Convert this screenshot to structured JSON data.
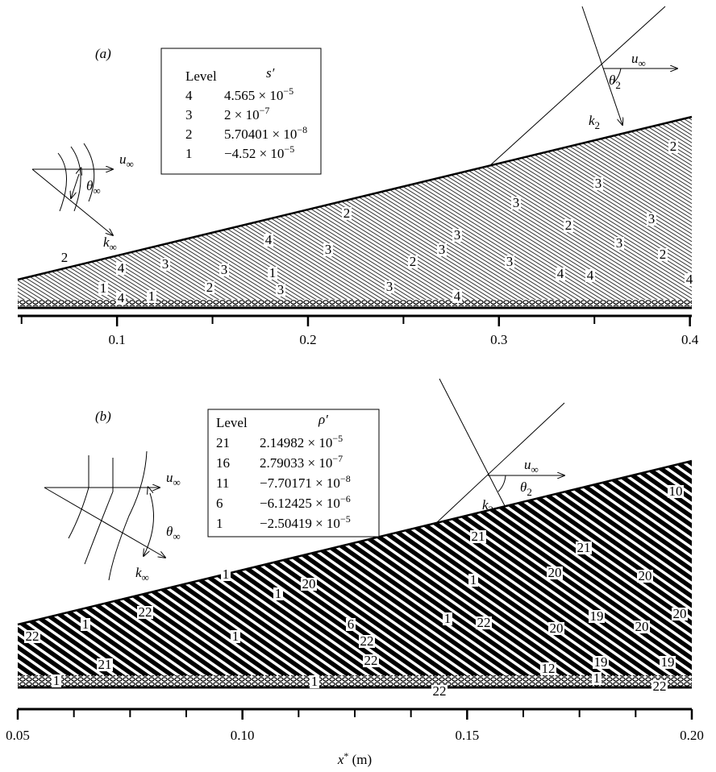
{
  "panels": [
    {
      "label": "(a)",
      "legend": {
        "header": [
          "Level",
          "s′"
        ],
        "rows": [
          {
            "level": "4",
            "mantissa": "4.565 × 10",
            "exponent": "−5"
          },
          {
            "level": "3",
            "mantissa": "2 × 10",
            "exponent": "−7"
          },
          {
            "level": "2",
            "mantissa": "5.70401 × 10",
            "exponent": "−8"
          },
          {
            "level": "1",
            "mantissa": "−4.52 × 10",
            "exponent": "−5"
          }
        ]
      },
      "freestream": {
        "u": {
          "base": "u",
          "sub": "∞"
        },
        "theta": {
          "base": "θ",
          "sub": "∞"
        },
        "k": {
          "base": "k",
          "sub": "∞"
        }
      },
      "wave": {
        "u": {
          "base": "u",
          "sub": "∞"
        },
        "theta": {
          "base": "θ",
          "sub": "2"
        },
        "k": {
          "base": "k",
          "sub": "2"
        }
      },
      "contour_labels": [
        "2",
        "4",
        "3",
        "1",
        "4",
        "1",
        "2",
        "3",
        "4",
        "1",
        "3",
        "2",
        "3",
        "3",
        "3",
        "2",
        "2",
        "3",
        "3",
        "2",
        "2",
        "3",
        "3",
        "4",
        "4",
        "4",
        "3",
        "3",
        "4"
      ],
      "xlim": [
        0.048,
        0.401
      ],
      "xticks": [
        0.1,
        0.2,
        0.3,
        0.4
      ],
      "xminorticks": [
        0.05,
        0.15,
        0.25,
        0.35
      ]
    },
    {
      "label": "(b)",
      "legend": {
        "header": [
          "Level",
          "ρ′"
        ],
        "rows": [
          {
            "level": "21",
            "mantissa": "2.14982 × 10",
            "exponent": "−5"
          },
          {
            "level": "16",
            "mantissa": "2.79033 × 10",
            "exponent": "−7"
          },
          {
            "level": "11",
            "mantissa": "−7.70171 × 10",
            "exponent": "−8"
          },
          {
            "level": "6",
            "mantissa": "−6.12425 × 10",
            "exponent": "−6"
          },
          {
            "level": "1",
            "mantissa": "−2.50419 × 10",
            "exponent": "−5"
          }
        ]
      },
      "freestream": {
        "u": {
          "base": "u",
          "sub": "∞"
        },
        "theta": {
          "base": "θ",
          "sub": "∞"
        },
        "k": {
          "base": "k",
          "sub": "∞"
        }
      },
      "wave": {
        "u": {
          "base": "u",
          "sub": "∞"
        },
        "theta": {
          "base": "θ",
          "sub": "2"
        },
        "k": {
          "base": "k",
          "sub": "2"
        }
      },
      "contour_labels": [
        "22",
        "1",
        "22",
        "21",
        "1",
        "1",
        "1",
        "1",
        "20",
        "22",
        "1",
        "6",
        "22",
        "1",
        "22",
        "21",
        "1",
        "22",
        "20",
        "20",
        "12",
        "19",
        "19",
        "1",
        "22",
        "19",
        "20",
        "20",
        "21",
        "20",
        "10"
      ],
      "xlim": [
        0.05,
        0.2
      ],
      "xticks": [
        {
          "value": 0.05,
          "label": "0.05"
        },
        {
          "value": 0.1,
          "label": "0.10"
        },
        0.15,
        {
          "value": 0.2,
          "label": "0.20"
        }
      ],
      "xminorticks": [
        0.0625,
        0.075,
        0.0875,
        0.1125,
        0.125,
        0.1375,
        0.1625,
        0.175,
        0.1875
      ]
    }
  ],
  "xlabel": {
    "base": "x",
    "sup": "*",
    "rest": " (m)"
  }
}
